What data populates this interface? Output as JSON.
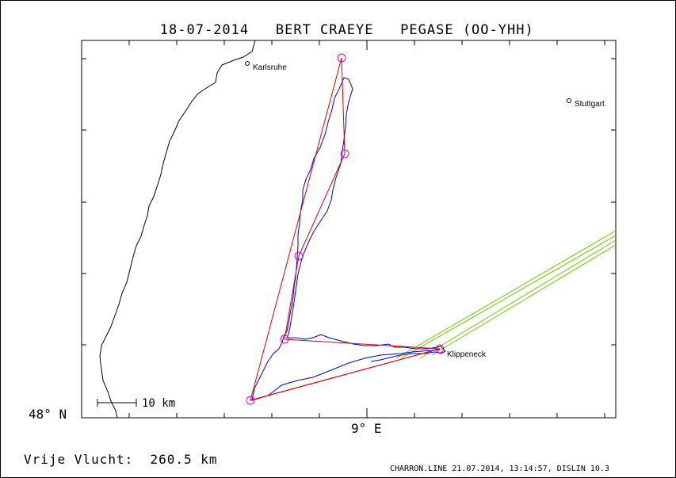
{
  "header": {
    "date": "18-07-2014",
    "pilot": "BERT CRAEYE",
    "aircraft": "PEGASE (OO-YHH)"
  },
  "axes": {
    "lat_label": "48° N",
    "lon_label": "9° E"
  },
  "cities": [
    {
      "name": "Karlsruhe"
    },
    {
      "name": "Stuttgart"
    },
    {
      "name": "Klippeneck"
    }
  ],
  "scale_bar": {
    "label": "10 km"
  },
  "distance": {
    "label": "Vrije Vlucht:",
    "value": "260.5 km"
  },
  "footer": "CHARRON.LINE 21.07.2014, 13:14:57, DISLIN 10.3",
  "colors": {
    "track": "#0000dd",
    "task": "#dd0000",
    "turnpoint": "#dd00dd",
    "airspace": "#66cc00",
    "border": "#000000"
  }
}
